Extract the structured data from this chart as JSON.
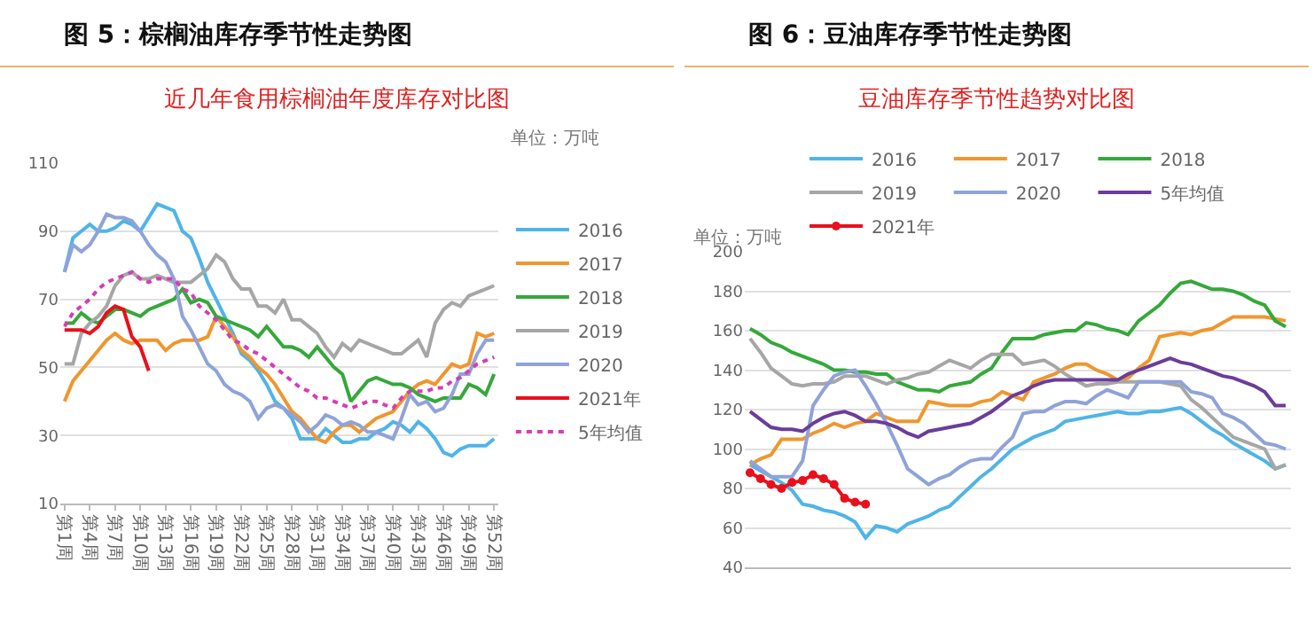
{
  "chart_data": [
    {
      "type": "line",
      "title": "图 5：棕榈油库存季节性走势图",
      "subtitle": "近几年食用棕榈油年度库存对比图",
      "annotations": [
        "单位：万吨"
      ],
      "categories": [
        "第1周",
        null,
        null,
        "第4周",
        null,
        null,
        "第7周",
        null,
        null,
        "第10周",
        null,
        null,
        "第13周",
        null,
        null,
        "第16周",
        null,
        null,
        "第19周",
        null,
        null,
        "第22周",
        null,
        null,
        "第25周",
        null,
        null,
        "第28周",
        null,
        null,
        "第31周",
        null,
        null,
        "第34周",
        null,
        null,
        "第37周",
        null,
        null,
        "第40周",
        null,
        null,
        "第43周",
        null,
        null,
        "第46周",
        null,
        null,
        "第49周",
        null,
        null,
        "第52周"
      ],
      "ylim": [
        10,
        110
      ],
      "yticks": [
        10,
        30,
        50,
        70,
        90,
        110
      ],
      "grid": "y",
      "legend": "right",
      "series": [
        {
          "name": "2016",
          "color": "#4fb4e8",
          "values": [
            78,
            88,
            90,
            92,
            90,
            90,
            91,
            93,
            92,
            90,
            94,
            98,
            97,
            96,
            90,
            88,
            82,
            75,
            70,
            65,
            60,
            54,
            52,
            49,
            45,
            40,
            38,
            35,
            29,
            29,
            29,
            32,
            30,
            28,
            28,
            29,
            29,
            31,
            32,
            34,
            33,
            31,
            34,
            32,
            29,
            25,
            24,
            26,
            27,
            27,
            27,
            29
          ]
        },
        {
          "name": "2017",
          "color": "#f0962e",
          "values": [
            40,
            46,
            49,
            52,
            55,
            58,
            60,
            58,
            57,
            58,
            58,
            58,
            55,
            57,
            58,
            58,
            58,
            59,
            65,
            62,
            59,
            55,
            53,
            50,
            48,
            45,
            41,
            37,
            35,
            32,
            29,
            28,
            31,
            33,
            33,
            31,
            33,
            35,
            36,
            37,
            40,
            43,
            45,
            46,
            45,
            48,
            51,
            50,
            51,
            60,
            59,
            60
          ]
        },
        {
          "name": "2018",
          "color": "#35a83a",
          "values": [
            63,
            63,
            66,
            64,
            63,
            65,
            67,
            67,
            66,
            65,
            67,
            68,
            69,
            70,
            73,
            69,
            70,
            69,
            65,
            64,
            63,
            62,
            61,
            59,
            62,
            59,
            56,
            56,
            55,
            53,
            56,
            53,
            50,
            48,
            40,
            43,
            46,
            47,
            46,
            45,
            45,
            44,
            42,
            41,
            40,
            41,
            41,
            41,
            45,
            44,
            42,
            48
          ]
        },
        {
          "name": "2019",
          "color": "#a6a6a6",
          "values": [
            51,
            51,
            60,
            63,
            65,
            68,
            74,
            77,
            78,
            76,
            76,
            77,
            76,
            75,
            75,
            75,
            77,
            79,
            83,
            81,
            76,
            73,
            73,
            68,
            68,
            66,
            70,
            64,
            64,
            62,
            60,
            56,
            53,
            57,
            55,
            58,
            57,
            56,
            55,
            54,
            54,
            56,
            58,
            53,
            63,
            67,
            69,
            68,
            71,
            72,
            73,
            74
          ]
        },
        {
          "name": "2020",
          "color": "#8fa3d8",
          "values": [
            78,
            86,
            84,
            86,
            90,
            95,
            94,
            94,
            93,
            90,
            86,
            83,
            81,
            76,
            65,
            61,
            56,
            51,
            49,
            45,
            43,
            42,
            40,
            35,
            38,
            39,
            38,
            36,
            34,
            31,
            33,
            36,
            35,
            33,
            34,
            33,
            31,
            31,
            30,
            29,
            35,
            42,
            39,
            40,
            37,
            38,
            42,
            48,
            48,
            54,
            58,
            58
          ]
        },
        {
          "name": "2021年",
          "color": "#e8101c",
          "values": [
            61,
            61,
            61,
            60,
            62,
            66,
            68,
            67,
            59,
            56,
            49,
            null,
            null,
            null,
            null,
            null,
            null,
            null,
            null,
            null,
            null,
            null,
            null,
            null,
            null,
            null,
            null,
            null,
            null,
            null,
            null,
            null,
            null,
            null,
            null,
            null,
            null,
            null,
            null,
            null,
            null,
            null,
            null,
            null,
            null,
            null,
            null,
            null,
            null,
            null,
            null,
            null
          ]
        },
        {
          "name": "5年均值",
          "color": "#d63cb4",
          "line_style": "dotted",
          "values": [
            62,
            66,
            68,
            70,
            73,
            75,
            76,
            77,
            78,
            76,
            75,
            76,
            76,
            76,
            73,
            72,
            68,
            66,
            64,
            61,
            58,
            57,
            55,
            54,
            52,
            50,
            48,
            46,
            44,
            43,
            41,
            41,
            40,
            39,
            38,
            39,
            40,
            40,
            39,
            38,
            41,
            43,
            43,
            43,
            44,
            44,
            46,
            47,
            49,
            51,
            52,
            53
          ]
        }
      ]
    },
    {
      "type": "line",
      "title": "图 6：豆油库存季节性走势图",
      "subtitle": "豆油库存季节性趋势对比图",
      "annotations": [
        "单位：万吨"
      ],
      "categories": [
        null,
        null,
        null,
        null,
        null,
        null,
        null,
        null,
        null,
        null,
        null,
        null,
        null,
        null,
        null,
        null,
        null,
        null,
        null,
        null,
        null,
        null,
        null,
        null,
        null,
        null,
        null,
        null,
        null,
        null,
        null,
        null,
        null,
        null,
        null,
        null,
        null,
        null,
        null,
        null,
        null,
        null,
        null,
        null,
        null,
        null,
        null,
        null,
        null,
        null,
        null,
        null
      ],
      "ylim": [
        40,
        200
      ],
      "yticks": [
        40,
        60,
        80,
        100,
        120,
        140,
        160,
        180,
        200
      ],
      "grid": "y",
      "legend": "top",
      "series": [
        {
          "name": "2016",
          "color": "#4fb4e8",
          "values": [
            92,
            89,
            86,
            83,
            79,
            72,
            71,
            69,
            68,
            66,
            63,
            55,
            61,
            60,
            58,
            62,
            64,
            66,
            69,
            71,
            76,
            81,
            86,
            90,
            95,
            100,
            103,
            106,
            108,
            110,
            114,
            115,
            116,
            117,
            118,
            119,
            118,
            118,
            119,
            119,
            120,
            121,
            118,
            114,
            110,
            107,
            103,
            100,
            97,
            94,
            90,
            92
          ]
        },
        {
          "name": "2017",
          "color": "#f0962e",
          "values": [
            92,
            95,
            97,
            105,
            105,
            105,
            108,
            110,
            113,
            111,
            113,
            114,
            118,
            116,
            114,
            114,
            114,
            124,
            123,
            122,
            122,
            122,
            124,
            125,
            129,
            127,
            125,
            134,
            136,
            138,
            141,
            143,
            143,
            140,
            138,
            135,
            136,
            141,
            145,
            157,
            158,
            159,
            158,
            160,
            161,
            164,
            167,
            167,
            167,
            167,
            166,
            165
          ]
        },
        {
          "name": "2018",
          "color": "#35a83a",
          "values": [
            161,
            158,
            154,
            152,
            149,
            147,
            145,
            143,
            140,
            140,
            139,
            139,
            138,
            138,
            134,
            132,
            130,
            130,
            129,
            132,
            133,
            134,
            138,
            141,
            149,
            156,
            156,
            156,
            158,
            159,
            160,
            160,
            164,
            163,
            161,
            160,
            158,
            165,
            169,
            173,
            179,
            184,
            185,
            183,
            181,
            181,
            180,
            178,
            175,
            173,
            165,
            162
          ]
        },
        {
          "name": "2019",
          "color": "#a6a6a6",
          "values": [
            156,
            149,
            141,
            137,
            133,
            132,
            133,
            133,
            134,
            137,
            137,
            137,
            135,
            133,
            135,
            136,
            138,
            139,
            142,
            145,
            143,
            141,
            145,
            148,
            148,
            148,
            143,
            144,
            145,
            142,
            138,
            135,
            132,
            133,
            133,
            134,
            134,
            134,
            134,
            134,
            133,
            132,
            125,
            121,
            116,
            111,
            106,
            104,
            102,
            100,
            90,
            92
          ]
        },
        {
          "name": "2020",
          "color": "#8fa3d8",
          "values": [
            94,
            90,
            86,
            86,
            86,
            94,
            122,
            130,
            137,
            139,
            140,
            132,
            123,
            113,
            102,
            90,
            86,
            82,
            85,
            87,
            91,
            94,
            95,
            95,
            101,
            106,
            118,
            119,
            119,
            122,
            124,
            124,
            123,
            127,
            130,
            128,
            126,
            134,
            134,
            134,
            134,
            134,
            129,
            128,
            126,
            118,
            116,
            113,
            108,
            103,
            102,
            100
          ]
        },
        {
          "name": "5年均值",
          "color": "#6a3d9a",
          "values": [
            119,
            115,
            111,
            110,
            110,
            109,
            113,
            116,
            118,
            119,
            117,
            114,
            114,
            113,
            111,
            108,
            106,
            109,
            110,
            111,
            112,
            113,
            116,
            119,
            123,
            127,
            129,
            132,
            134,
            135,
            135,
            135,
            135,
            135,
            135,
            135,
            138,
            140,
            142,
            144,
            146,
            144,
            143,
            141,
            139,
            137,
            136,
            134,
            132,
            129,
            122,
            122
          ]
        },
        {
          "name": "2021年",
          "color": "#e8101c",
          "marker": "circle",
          "values": [
            88,
            85,
            82,
            80,
            83,
            84,
            87,
            85,
            82,
            75,
            73,
            72,
            null,
            null,
            null,
            null,
            null,
            null,
            null,
            null,
            null,
            null,
            null,
            null,
            null,
            null,
            null,
            null,
            null,
            null,
            null,
            null,
            null,
            null,
            null,
            null,
            null,
            null,
            null,
            null,
            null,
            null,
            null,
            null,
            null,
            null,
            null,
            null,
            null,
            null,
            null,
            null
          ]
        }
      ]
    }
  ]
}
